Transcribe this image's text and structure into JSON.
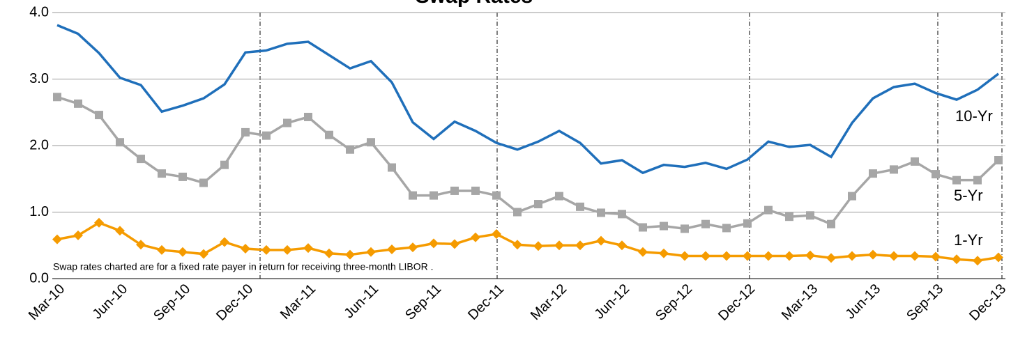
{
  "chart_data": {
    "type": "line",
    "title": "Swap Rates",
    "note": "Swap rates charted are for a fixed rate payer in return for receiving three-month LIBOR .",
    "categories": [
      "Mar-10",
      null,
      null,
      "Jun-10",
      null,
      null,
      "Sep-10",
      null,
      null,
      "Dec-10",
      null,
      null,
      "Mar-11",
      null,
      null,
      "Jun-11",
      null,
      null,
      "Sep-11",
      null,
      null,
      "Dec-11",
      null,
      null,
      "Mar-12",
      null,
      null,
      "Jun-12",
      null,
      null,
      "Sep-12",
      null,
      null,
      "Dec-12",
      null,
      null,
      "Mar-13",
      null,
      null,
      "Jun-13",
      null,
      null,
      "Sep-13",
      null,
      null,
      "Dec-13"
    ],
    "series": [
      {
        "name": "10-Yr",
        "color": "#1f6fba",
        "marker": "none",
        "values": [
          3.81,
          3.68,
          3.39,
          3.02,
          2.91,
          2.51,
          2.6,
          2.71,
          2.92,
          3.4,
          3.43,
          3.53,
          3.56,
          3.36,
          3.16,
          3.27,
          2.95,
          2.35,
          2.1,
          2.36,
          2.22,
          2.04,
          1.94,
          2.06,
          2.22,
          2.04,
          1.73,
          1.78,
          1.59,
          1.71,
          1.68,
          1.74,
          1.65,
          1.79,
          2.06,
          1.98,
          2.01,
          1.83,
          2.34,
          2.71,
          2.88,
          2.93,
          2.79,
          2.69,
          2.84,
          3.08
        ]
      },
      {
        "name": "5-Yr",
        "color": "#a6a6a6",
        "marker": "square",
        "values": [
          2.73,
          2.63,
          2.46,
          2.05,
          1.8,
          1.58,
          1.53,
          1.44,
          1.71,
          2.2,
          2.15,
          2.34,
          2.43,
          2.16,
          1.94,
          2.05,
          1.67,
          1.25,
          1.25,
          1.32,
          1.32,
          1.25,
          1.0,
          1.12,
          1.24,
          1.08,
          0.99,
          0.97,
          0.77,
          0.79,
          0.75,
          0.82,
          0.76,
          0.83,
          1.03,
          0.93,
          0.95,
          0.82,
          1.24,
          1.58,
          1.64,
          1.76,
          1.57,
          1.48,
          1.48,
          1.78
        ]
      },
      {
        "name": "1-Yr",
        "color": "#f59b00",
        "marker": "diamond",
        "values": [
          0.59,
          0.65,
          0.84,
          0.72,
          0.51,
          0.43,
          0.4,
          0.37,
          0.55,
          0.45,
          0.43,
          0.43,
          0.46,
          0.38,
          0.36,
          0.4,
          0.44,
          0.47,
          0.53,
          0.52,
          0.62,
          0.67,
          0.51,
          0.49,
          0.5,
          0.5,
          0.57,
          0.5,
          0.4,
          0.38,
          0.34,
          0.34,
          0.34,
          0.34,
          0.34,
          0.34,
          0.35,
          0.31,
          0.34,
          0.36,
          0.34,
          0.34,
          0.33,
          0.29,
          0.27,
          0.32
        ]
      }
    ],
    "ylim": [
      0,
      4
    ],
    "yticks": [
      {
        "value": 0,
        "label": "0.0"
      },
      {
        "value": 1,
        "label": "1.0"
      },
      {
        "value": 2,
        "label": "2.0"
      },
      {
        "value": 3,
        "label": "3.0"
      },
      {
        "value": 4,
        "label": "4.0"
      }
    ],
    "grid": true
  }
}
